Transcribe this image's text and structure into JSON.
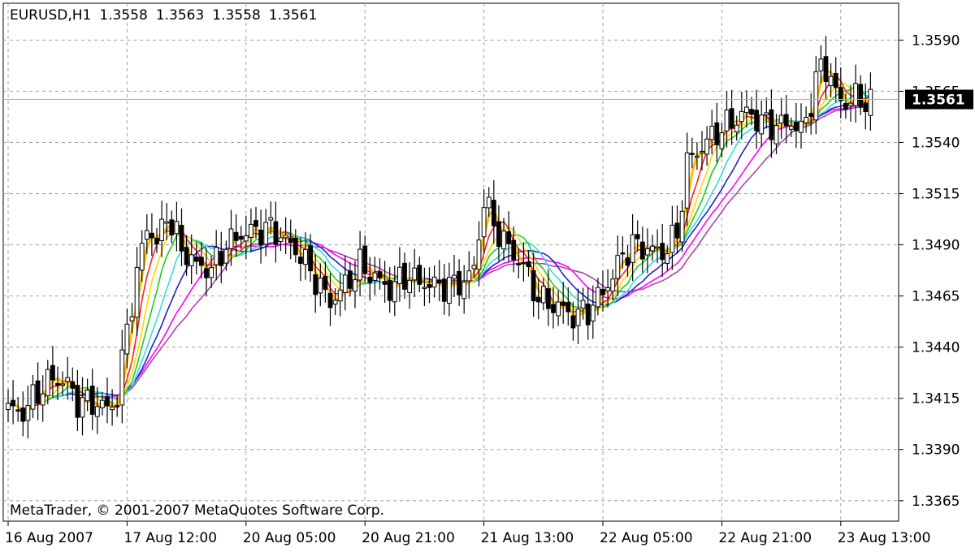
{
  "header": {
    "symbol": "EURUSD,H1",
    "open": "1.3558",
    "high": "1.3563",
    "low": "1.3558",
    "close": "1.3561"
  },
  "watermark": "MetaTrader, © 2001-2007 MetaQuotes Software Corp.",
  "chart_data": {
    "type": "candlestick",
    "symbol": "EURUSD",
    "timeframe": "H1",
    "ylim": [
      1.3355,
      1.3608
    ],
    "y_ticks": [
      "1.3590",
      "1.3565",
      "1.3540",
      "1.3515",
      "1.3490",
      "1.3465",
      "1.3440",
      "1.3415",
      "1.3390",
      "1.3365"
    ],
    "y_tick_values": [
      1.359,
      1.3565,
      1.354,
      1.3515,
      1.349,
      1.3465,
      1.344,
      1.3415,
      1.339,
      1.3365
    ],
    "x_ticks": [
      "16 Aug 2007",
      "17 Aug 12:00",
      "20 Aug 05:00",
      "20 Aug 21:00",
      "21 Aug 13:00",
      "22 Aug 05:00",
      "22 Aug 21:00",
      "23 Aug 13:00"
    ],
    "x_tick_bars": [
      0,
      24,
      48,
      72,
      96,
      120,
      144,
      168
    ],
    "current_price": "1.3561",
    "current_price_value": 1.3561,
    "grid": true,
    "candle_colors": {
      "bull": "#ffffff",
      "bear": "#000000",
      "outline": "#000000"
    },
    "price_path": [
      [
        0,
        1.341
      ],
      [
        3,
        1.3408
      ],
      [
        6,
        1.3418
      ],
      [
        9,
        1.3425
      ],
      [
        12,
        1.3422
      ],
      [
        14,
        1.3413
      ],
      [
        17,
        1.3413
      ],
      [
        20,
        1.341
      ],
      [
        22,
        1.3415
      ],
      [
        24,
        1.345
      ],
      [
        26,
        1.3475
      ],
      [
        28,
        1.35
      ],
      [
        30,
        1.349
      ],
      [
        32,
        1.3505
      ],
      [
        35,
        1.3488
      ],
      [
        38,
        1.348
      ],
      [
        41,
        1.3478
      ],
      [
        44,
        1.349
      ],
      [
        47,
        1.3495
      ],
      [
        50,
        1.3497
      ],
      [
        53,
        1.3498
      ],
      [
        56,
        1.3492
      ],
      [
        59,
        1.3485
      ],
      [
        62,
        1.3473
      ],
      [
        65,
        1.3462
      ],
      [
        68,
        1.347
      ],
      [
        71,
        1.348
      ],
      [
        74,
        1.3474
      ],
      [
        77,
        1.3468
      ],
      [
        80,
        1.3475
      ],
      [
        83,
        1.3472
      ],
      [
        86,
        1.347
      ],
      [
        89,
        1.347
      ],
      [
        92,
        1.3472
      ],
      [
        94,
        1.3478
      ],
      [
        96,
        1.3512
      ],
      [
        98,
        1.35
      ],
      [
        100,
        1.3492
      ],
      [
        102,
        1.3485
      ],
      [
        104,
        1.348
      ],
      [
        106,
        1.3468
      ],
      [
        108,
        1.3462
      ],
      [
        111,
        1.346
      ],
      [
        114,
        1.3455
      ],
      [
        117,
        1.3458
      ],
      [
        120,
        1.3467
      ],
      [
        122,
        1.3475
      ],
      [
        124,
        1.3485
      ],
      [
        126,
        1.349
      ],
      [
        129,
        1.3488
      ],
      [
        132,
        1.3486
      ],
      [
        135,
        1.3495
      ],
      [
        137,
        1.353
      ],
      [
        140,
        1.3538
      ],
      [
        143,
        1.3545
      ],
      [
        146,
        1.355
      ],
      [
        149,
        1.3555
      ],
      [
        152,
        1.355
      ],
      [
        155,
        1.3548
      ],
      [
        158,
        1.355
      ],
      [
        160,
        1.3545
      ],
      [
        162,
        1.356
      ],
      [
        164,
        1.3578
      ],
      [
        166,
        1.3572
      ],
      [
        168,
        1.3558
      ],
      [
        170,
        1.3562
      ],
      [
        172,
        1.356
      ],
      [
        174,
        1.3561
      ]
    ],
    "series": [
      {
        "period": 3,
        "color": "#ffc000",
        "width": 3.2
      },
      {
        "period": 5,
        "color": "#ff2020",
        "width": 1.6
      },
      {
        "period": 7,
        "color": "#ffd700",
        "width": 1.6
      },
      {
        "period": 9,
        "color": "#22cc22",
        "width": 1.6
      },
      {
        "period": 12,
        "color": "#33dddd",
        "width": 1.6
      },
      {
        "period": 15,
        "color": "#2222cc",
        "width": 1.6
      },
      {
        "period": 19,
        "color": "#ff00ff",
        "width": 1.6
      },
      {
        "period": 23,
        "color": "#aa44aa",
        "width": 1.6
      }
    ]
  }
}
